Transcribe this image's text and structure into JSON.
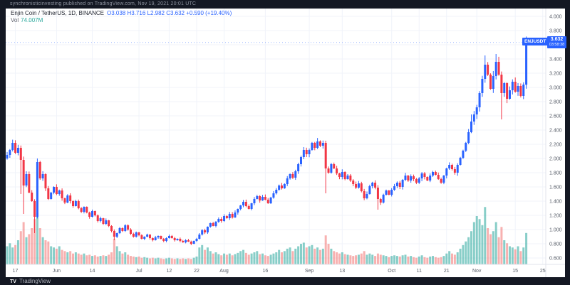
{
  "header": {
    "publish_line": "synchronisticinvesting published on TradingView.com, Nov 19, 2021 20:01 UTC"
  },
  "legend": {
    "symbol_title": "Enjin Coin / TetherUS, 1D, BINANCE",
    "ohlc_summary": "O3.038  H3.716  L2.982  C3.632  +0.590 (+19.40%)",
    "volume_label": "Vol",
    "volume_value": "74.007M"
  },
  "symbol_tag": "ENJUSDT",
  "price_label": {
    "value": "3.632",
    "countdown": "03:58:38"
  },
  "price_scale": {
    "ticks": [
      "4.000",
      "3.800",
      "3.400",
      "3.200",
      "3.000",
      "2.800",
      "2.600",
      "2.400",
      "2.200",
      "2.000",
      "1.800",
      "1.600",
      "1.400",
      "1.200",
      "1.000",
      "0.800",
      "0.600"
    ],
    "min": 0.6,
    "max": 4.0,
    "step": 0.2
  },
  "time_scale": {
    "labels": [
      {
        "label": "17",
        "day": 3
      },
      {
        "label": "Jun",
        "day": 18
      },
      {
        "label": "14",
        "day": 31
      },
      {
        "label": "Jul",
        "day": 48
      },
      {
        "label": "12",
        "day": 59
      },
      {
        "label": "22",
        "day": 69
      },
      {
        "label": "Aug",
        "day": 79
      },
      {
        "label": "16",
        "day": 94
      },
      {
        "label": "Sep",
        "day": 110
      },
      {
        "label": "13",
        "day": 122
      },
      {
        "label": "Oct",
        "day": 140
      },
      {
        "label": "11",
        "day": 150
      },
      {
        "label": "21",
        "day": 160
      },
      {
        "label": "Nov",
        "day": 171
      },
      {
        "label": "15",
        "day": 185
      },
      {
        "label": "25",
        "day": 195
      }
    ]
  },
  "footer": {
    "logo_text": "TradingView",
    "logo_mark": "TV"
  },
  "colors": {
    "up": "#2962ff",
    "down": "#f23645",
    "vol_up": "rgba(38,166,154,0.55)",
    "vol_down": "rgba(239,83,80,0.45)",
    "grid": "#f0f3fa",
    "axis_text": "#555b66",
    "separator": "#e0e3eb",
    "price_line": "#2962ff",
    "accent": "#2962ff"
  },
  "chart_data": {
    "type": "candlestick",
    "symbol": "ENJUSDT",
    "exchange": "BINANCE",
    "interval": "1D",
    "start_date": "2021-05-14",
    "end_date": "2021-11-19",
    "last_candle": {
      "open": 3.038,
      "high": 3.716,
      "low": 2.982,
      "close": 3.632,
      "change": "+0.590",
      "change_pct": "+19.40%"
    },
    "ylim": [
      0.6,
      4.0
    ],
    "closes": [
      2.05,
      2.12,
      2.22,
      2.08,
      2.15,
      1.98,
      1.62,
      1.78,
      1.52,
      1.4,
      1.18,
      1.95,
      1.72,
      1.78,
      1.58,
      1.43,
      1.52,
      1.6,
      1.5,
      1.55,
      1.44,
      1.38,
      1.48,
      1.4,
      1.33,
      1.4,
      1.3,
      1.25,
      1.32,
      1.24,
      1.18,
      1.26,
      1.2,
      1.12,
      1.16,
      1.08,
      1.13,
      1.05,
      0.98,
      0.9,
      0.95,
      1.02,
      0.98,
      1.06,
      1.0,
      0.94,
      0.9,
      0.96,
      0.92,
      0.87,
      0.9,
      0.93,
      0.88,
      0.85,
      0.89,
      0.91,
      0.87,
      0.84,
      0.88,
      0.91,
      0.88,
      0.85,
      0.87,
      0.84,
      0.82,
      0.85,
      0.83,
      0.8,
      0.84,
      0.87,
      0.93,
      0.99,
      0.96,
      1.04,
      1.09,
      1.05,
      1.11,
      1.15,
      1.12,
      1.19,
      1.16,
      1.22,
      1.17,
      1.24,
      1.29,
      1.34,
      1.39,
      1.33,
      1.29,
      1.37,
      1.43,
      1.47,
      1.41,
      1.46,
      1.42,
      1.37,
      1.45,
      1.51,
      1.56,
      1.62,
      1.58,
      1.64,
      1.72,
      1.78,
      1.73,
      1.82,
      1.92,
      2.02,
      2.12,
      2.06,
      2.12,
      2.22,
      2.15,
      2.24,
      2.18,
      2.22,
      1.86,
      1.8,
      1.92,
      1.86,
      1.79,
      1.74,
      1.81,
      1.71,
      1.76,
      1.69,
      1.64,
      1.59,
      1.65,
      1.54,
      1.44,
      1.5,
      1.61,
      1.66,
      1.59,
      1.43,
      1.38,
      1.49,
      1.55,
      1.49,
      1.56,
      1.61,
      1.66,
      1.6,
      1.7,
      1.76,
      1.69,
      1.75,
      1.71,
      1.66,
      1.72,
      1.79,
      1.74,
      1.69,
      1.76,
      1.81,
      1.77,
      1.71,
      1.66,
      1.76,
      1.86,
      1.91,
      1.85,
      1.8,
      1.91,
      2.01,
      2.11,
      2.22,
      2.37,
      2.52,
      2.62,
      2.72,
      2.92,
      3.12,
      3.32,
      3.18,
      2.98,
      3.16,
      3.36,
      3.18,
      2.92,
      3.06,
      2.84,
      2.96,
      3.08,
      2.94,
      3.02,
      2.88,
      3.04,
      3.632
    ],
    "volumes": [
      0.3,
      0.35,
      0.28,
      0.32,
      0.4,
      0.55,
      0.7,
      0.45,
      0.5,
      0.6,
      0.75,
      0.85,
      0.6,
      0.45,
      0.4,
      0.38,
      0.3,
      0.28,
      0.26,
      0.3,
      0.24,
      0.22,
      0.2,
      0.22,
      0.18,
      0.2,
      0.18,
      0.16,
      0.18,
      0.15,
      0.16,
      0.14,
      0.15,
      0.13,
      0.14,
      0.15,
      0.14,
      0.16,
      0.2,
      0.42,
      0.3,
      0.22,
      0.18,
      0.2,
      0.16,
      0.14,
      0.13,
      0.12,
      0.13,
      0.11,
      0.12,
      0.11,
      0.1,
      0.11,
      0.1,
      0.11,
      0.1,
      0.09,
      0.1,
      0.11,
      0.1,
      0.09,
      0.1,
      0.09,
      0.1,
      0.09,
      0.1,
      0.09,
      0.11,
      0.13,
      0.28,
      0.32,
      0.24,
      0.28,
      0.22,
      0.18,
      0.2,
      0.17,
      0.15,
      0.18,
      0.16,
      0.18,
      0.15,
      0.17,
      0.19,
      0.22,
      0.24,
      0.19,
      0.16,
      0.18,
      0.2,
      0.22,
      0.17,
      0.18,
      0.15,
      0.14,
      0.16,
      0.18,
      0.2,
      0.24,
      0.2,
      0.22,
      0.26,
      0.28,
      0.22,
      0.26,
      0.3,
      0.34,
      0.36,
      0.28,
      0.3,
      0.32,
      0.26,
      0.28,
      0.24,
      0.26,
      0.48,
      0.34,
      0.26,
      0.22,
      0.2,
      0.18,
      0.2,
      0.17,
      0.16,
      0.15,
      0.14,
      0.15,
      0.16,
      0.18,
      0.22,
      0.16,
      0.18,
      0.16,
      0.14,
      0.18,
      0.16,
      0.15,
      0.14,
      0.12,
      0.14,
      0.15,
      0.14,
      0.13,
      0.15,
      0.16,
      0.13,
      0.14,
      0.12,
      0.11,
      0.13,
      0.15,
      0.12,
      0.11,
      0.13,
      0.14,
      0.12,
      0.11,
      0.12,
      0.14,
      0.18,
      0.22,
      0.18,
      0.16,
      0.2,
      0.26,
      0.32,
      0.38,
      0.45,
      0.55,
      0.7,
      0.8,
      0.75,
      0.65,
      0.95,
      0.6,
      0.5,
      0.55,
      0.7,
      0.45,
      0.62,
      0.4,
      0.35,
      0.3,
      0.28,
      0.25,
      0.3,
      0.22,
      0.28,
      0.52
    ],
    "overrides": {
      "0": {
        "o": 2.0
      },
      "5": {
        "l": 1.5
      },
      "6": {
        "l": 1.22
      },
      "10": {
        "l": 0.95
      },
      "11": {
        "h": 2.0
      },
      "39": {
        "l": 0.85
      },
      "67": {
        "l": 0.78
      },
      "116": {
        "l": 1.51
      },
      "135": {
        "l": 1.28
      },
      "169": {
        "h": 2.62
      },
      "174": {
        "h": 3.45
      },
      "178": {
        "h": 3.47
      },
      "180": {
        "l": 2.55
      },
      "189": {
        "o": 3.038,
        "h": 3.716,
        "l": 2.982,
        "c": 3.632
      }
    }
  }
}
